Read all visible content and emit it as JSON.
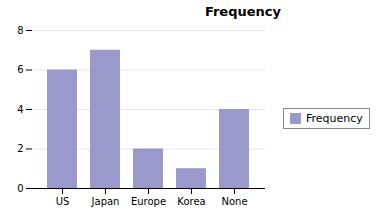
{
  "chart_data": {
    "type": "bar",
    "title": "Frequency",
    "categories": [
      "US",
      "Japan",
      "Europe",
      "Korea",
      "None"
    ],
    "series": [
      {
        "name": "Frequency",
        "color": "#9999cc",
        "values": [
          6,
          7,
          2,
          1,
          4
        ]
      }
    ],
    "ylim": [
      0,
      8
    ],
    "yticks": [
      0,
      2,
      4,
      6,
      8
    ],
    "grid": true,
    "legend": "right"
  }
}
